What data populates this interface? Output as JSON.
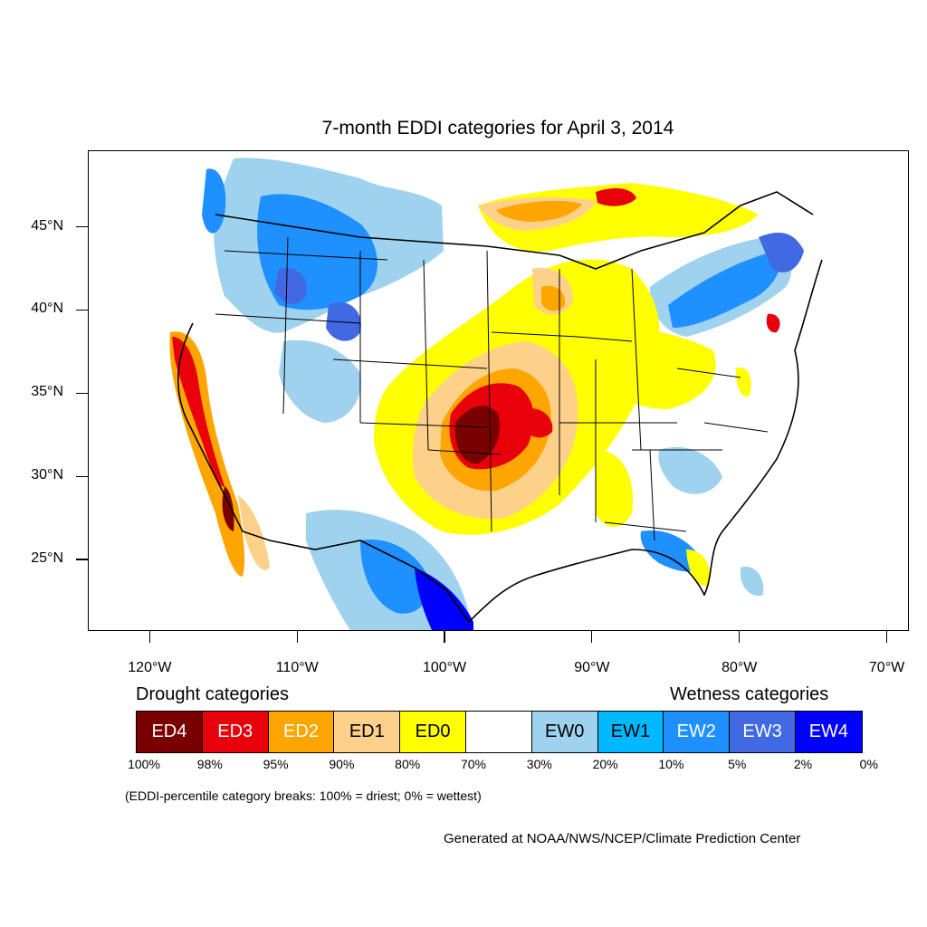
{
  "title": "7-month EDDI categories for April 3, 2014",
  "map": {
    "lon_range": [
      -124.2,
      -68.5
    ],
    "lat_range": [
      20.7,
      49.6
    ],
    "lat_ticks": [
      {
        "value": 45,
        "label": "45°N"
      },
      {
        "value": 40,
        "label": "40°N"
      },
      {
        "value": 35,
        "label": "35°N"
      },
      {
        "value": 30,
        "label": "30°N"
      },
      {
        "value": 25,
        "label": "25°N"
      }
    ],
    "lon_ticks": [
      {
        "value": -120,
        "label": "120°W"
      },
      {
        "value": -110,
        "label": "110°W"
      },
      {
        "value": -100,
        "label": "100°W"
      },
      {
        "value": -90,
        "label": "90°W"
      },
      {
        "value": -80,
        "label": "80°W"
      },
      {
        "value": -70,
        "label": "70°W"
      }
    ]
  },
  "legend": {
    "drought_heading": "Drought categories",
    "wetness_heading": "Wetness categories",
    "categories": [
      {
        "label": "ED4",
        "color": "#7a0000",
        "text_color": "#ffffff"
      },
      {
        "label": "ED3",
        "color": "#e8000b",
        "text_color": "#ffffff"
      },
      {
        "label": "ED2",
        "color": "#ffa500",
        "text_color": "#ffffff"
      },
      {
        "label": "ED1",
        "color": "#fdd18a",
        "text_color": "#000000"
      },
      {
        "label": "ED0",
        "color": "#ffff00",
        "text_color": "#000000"
      },
      {
        "label": "",
        "color": "#ffffff",
        "text_color": "#000000"
      },
      {
        "label": "EW0",
        "color": "#9fd2ef",
        "text_color": "#000000"
      },
      {
        "label": "EW1",
        "color": "#00b8ff",
        "text_color": "#000000"
      },
      {
        "label": "EW2",
        "color": "#1e90ff",
        "text_color": "#ffffff"
      },
      {
        "label": "EW3",
        "color": "#4169e1",
        "text_color": "#ffffff"
      },
      {
        "label": "EW4",
        "color": "#0000ff",
        "text_color": "#ffffff"
      }
    ],
    "breaks": [
      "100%",
      "98%",
      "95%",
      "90%",
      "80%",
      "70%",
      "30%",
      "20%",
      "10%",
      "5%",
      "2%",
      "0%"
    ]
  },
  "note": "(EDDI-percentile category breaks: 100% = driest; 0% = wettest)",
  "credit": "Generated at NOAA/NWS/NCEP/Climate Prediction Center"
}
